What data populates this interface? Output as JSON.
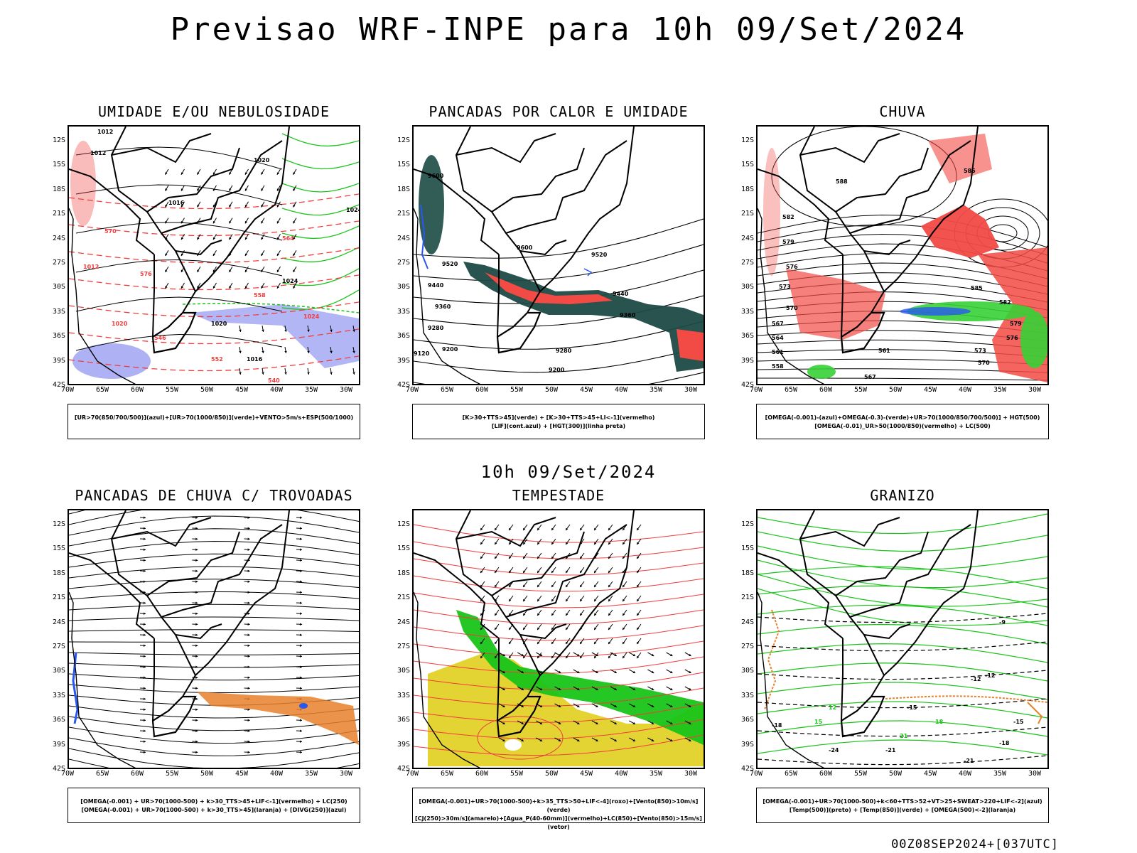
{
  "header": {
    "title": "Previsao WRF-INPE  para 10h 09/Set/2024",
    "mid_title": "10h 09/Set/2024",
    "footer": "00Z08SEP2024+[037UTC]"
  },
  "axes": {
    "lat_labels": [
      "12S",
      "15S",
      "18S",
      "21S",
      "24S",
      "27S",
      "30S",
      "33S",
      "36S",
      "39S",
      "42S"
    ],
    "lon_labels": [
      "70W",
      "65W",
      "60W",
      "55W",
      "50W",
      "45W",
      "40W",
      "35W",
      "30W"
    ]
  },
  "panels": [
    {
      "title": "UMIDADE E/OU NEBULOSIDADE",
      "legend_lines": [
        "[UR>70(850/700/500)](azul)+[UR>70(1000/850)](verde)+VENTO>5m/s+ESP(500/1000)"
      ],
      "contour_labels": [
        "1012",
        "1012",
        "1016",
        "1020",
        "1024",
        "1024",
        "1020",
        "1016",
        "1012",
        "1020",
        "1024",
        "570",
        "576",
        "564",
        "558",
        "552",
        "546",
        "540"
      ]
    },
    {
      "title": "PANCADAS POR CALOR E UMIDADE",
      "legend_lines": [
        "[K>30+TTS>45](verde) + [K>30+TTS>45+LI<-1](vermelho)",
        "[LIF](cont.azul) + [HGT(300)](linha preta)"
      ],
      "contour_labels": [
        "9600",
        "9520",
        "9440",
        "9360",
        "9280",
        "9200",
        "9600",
        "9520",
        "9440",
        "9360",
        "9280",
        "9200",
        "9120"
      ]
    },
    {
      "title": "CHUVA",
      "legend_lines": [
        "[OMEGA(-0.001)-(azul)+OMEGA(-0.3)-(verde)+UR>70(1000/850/700/500)] + HGT(500)",
        "[OMEGA(-0.01)_UR>50(1000/850)(vermelho) + LC(500)"
      ],
      "contour_labels": [
        "588",
        "585",
        "582",
        "579",
        "576",
        "573",
        "570",
        "567",
        "564",
        "561",
        "558",
        "585",
        "582",
        "579",
        "576",
        "573",
        "570",
        "567",
        "564",
        "561"
      ]
    },
    {
      "title": "PANCADAS DE CHUVA C/ TROVOADAS",
      "legend_lines": [
        "[OMEGA(-0.001) + UR>70(1000-500) + k>30_TTS>45+LIF<-1](vermelho) + LC(250)",
        "[OMEGA(-0.001) + UR>70(1000-500) + k>30_TTS>45](laranja) + [DIVG(250)](azul)"
      ],
      "contour_labels": []
    },
    {
      "title": "TEMPESTADE",
      "legend_lines": [
        "[OMEGA(-0.001)+UR>70(1000-500)+k>35_TTS>50+LIF<-4](roxo)+[Vento(850)>10m/s](verde)",
        "[CJ(250)>30m/s](amarelo)+[Agua_P(40-60mm)](vermelho)+LC(850)+[Vento(850)>15m/s](vetor)"
      ],
      "contour_labels": []
    },
    {
      "title": "GRANIZO",
      "legend_lines": [
        "[OMEGA(-0.001)+UR>70(1000-500)+k<60+TTS>52+VT>25+SWEAT>220+LIF<-2](azul)",
        "[Temp(500)](preto) + [Temp(850)](verde) + [OMEGA(500)<-2](laranja)"
      ],
      "contour_labels": [
        "-9",
        "-12",
        "-15",
        "-18",
        "-21",
        "-24",
        "-12",
        "-15",
        "-18",
        "-21",
        "12",
        "15",
        "18",
        "21"
      ]
    }
  ],
  "colors": {
    "humidity_blue": "#9a9ef0",
    "humidity_green": "#19c419",
    "contour_red": "#f03c3c",
    "teal": "#1c4a44",
    "rain_red": "#f24a44",
    "rain_green": "#36d036",
    "rain_blue": "#2858f0",
    "orange": "#e8802c",
    "yellow": "#e2d228",
    "contour_black": "#000000"
  }
}
